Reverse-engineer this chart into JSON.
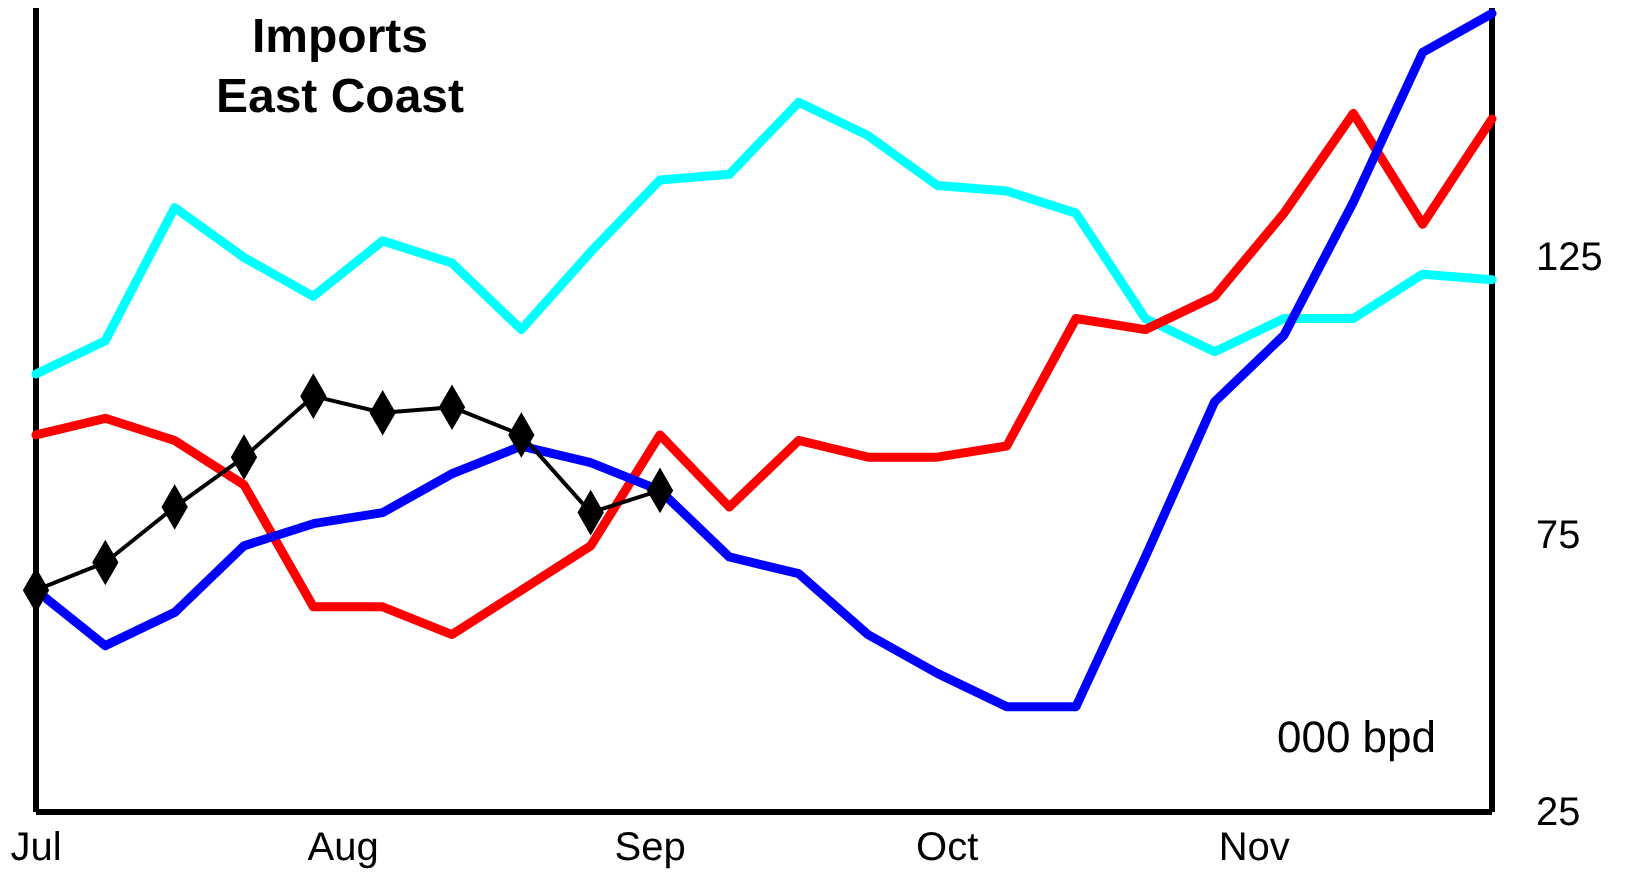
{
  "chart_data": {
    "type": "line",
    "title": "Imports\nEast Coast",
    "annotations": [
      "000 bpd"
    ],
    "x": [
      "--07-01",
      "--07-08",
      "--07-15",
      "--07-22",
      "--07-29",
      "--08-05",
      "--08-12",
      "--08-19",
      "--08-26",
      "--09-02",
      "--09-09",
      "--09-16",
      "--09-23",
      "--09-30",
      "--10-07",
      "--10-14",
      "--10-21",
      "--10-28",
      "--11-04",
      "--11-11",
      "--11-18",
      "--11-25"
    ],
    "xlim": [
      "--07-01",
      "--11-25"
    ],
    "xticks": [
      {
        "value": "--07-01",
        "label": "Jul"
      },
      {
        "value": "--08-01",
        "label": "Aug"
      },
      {
        "value": "--09-01",
        "label": "Sep"
      },
      {
        "value": "--10-01",
        "label": "Oct"
      },
      {
        "value": "--11-01",
        "label": "Nov"
      }
    ],
    "ylim": [
      25,
      170
    ],
    "yticks": [
      25,
      75,
      125
    ],
    "series": [
      {
        "color": "#00ffff",
        "marker": "none",
        "values": [
          104,
          110,
          134,
          125,
          118,
          128,
          124,
          112,
          126,
          139,
          140,
          153,
          147,
          138,
          137,
          133,
          114,
          108,
          114,
          114,
          122,
          121
        ]
      },
      {
        "color": "#ff0000",
        "marker": "none",
        "values": [
          93,
          96,
          92,
          84,
          62,
          62,
          57,
          65,
          73,
          93,
          80,
          92,
          89,
          89,
          91,
          114,
          112,
          118,
          133,
          151,
          131,
          150
        ]
      },
      {
        "color": "#0000ff",
        "marker": "none",
        "values": [
          65,
          55,
          61,
          73,
          77,
          79,
          86,
          91,
          88,
          83,
          71,
          68,
          57,
          50,
          44,
          44,
          71,
          99,
          111,
          135,
          162,
          169
        ]
      },
      {
        "color": "#000000",
        "marker": "diamond",
        "values": [
          65,
          70,
          80,
          89,
          100,
          97,
          98,
          93,
          79,
          83,
          null,
          null,
          null,
          null,
          null,
          null,
          null,
          null,
          null,
          null,
          null,
          null
        ]
      }
    ]
  }
}
